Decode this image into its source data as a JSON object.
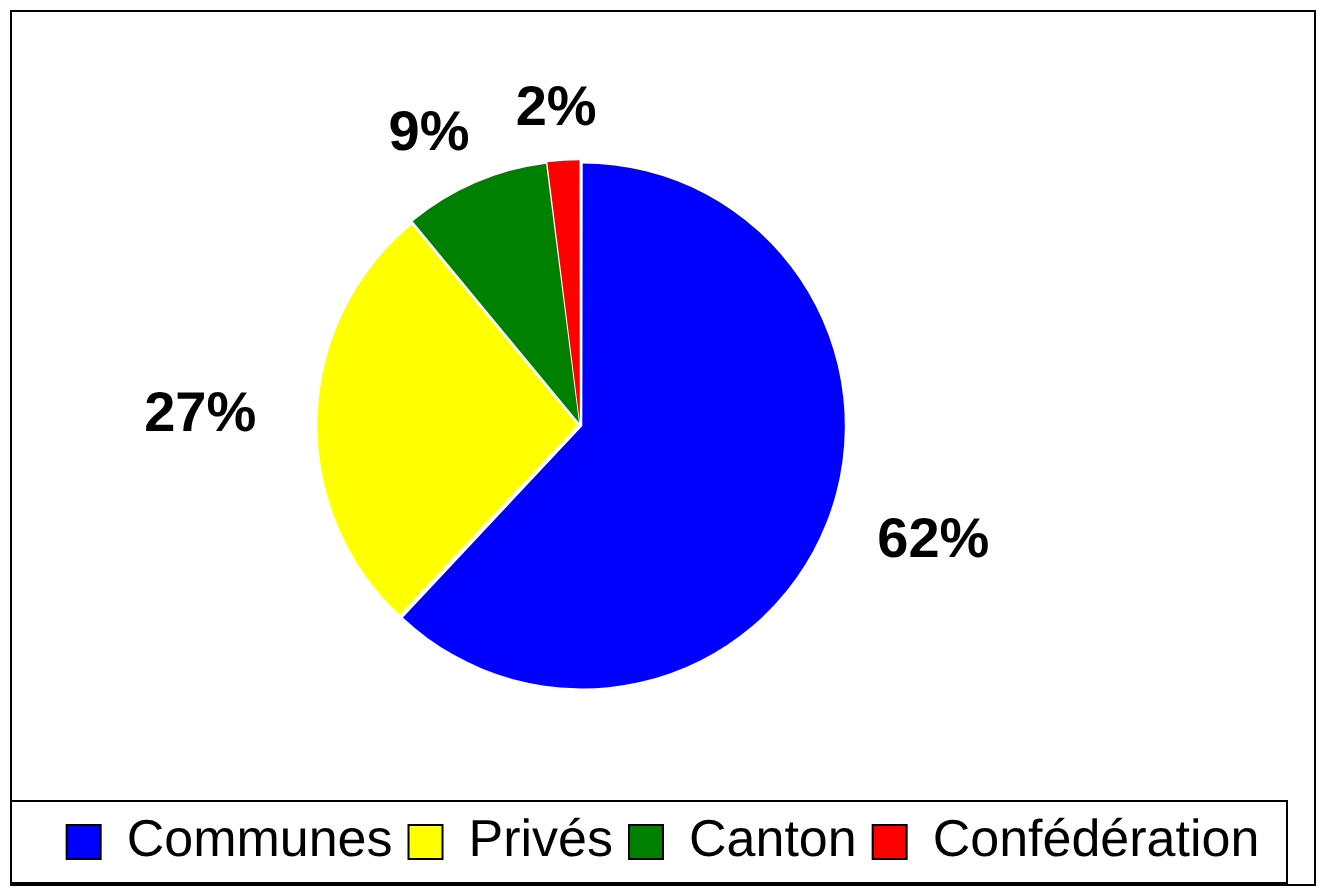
{
  "chart_data": {
    "type": "pie",
    "categories": [
      "Communes",
      "Privés",
      "Canton",
      "Confédération"
    ],
    "values": [
      62,
      27,
      9,
      2
    ],
    "colors": [
      "#0000ff",
      "#ffff00",
      "#008000",
      "#ff0000"
    ],
    "value_labels": [
      "62%",
      "27%",
      "9%",
      "2%"
    ],
    "legend": "bottom"
  }
}
